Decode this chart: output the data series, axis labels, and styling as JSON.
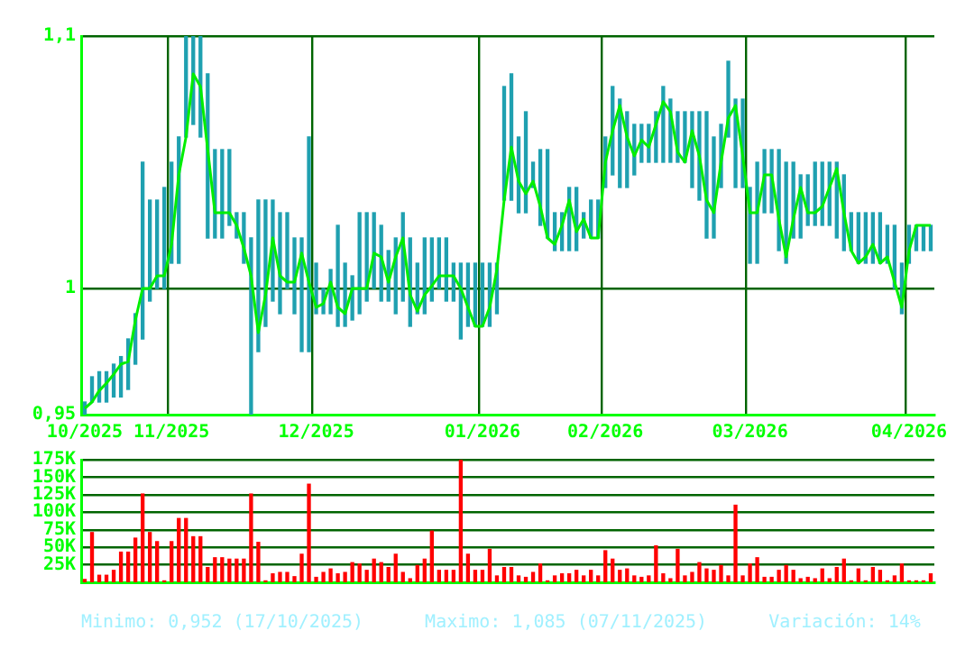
{
  "chart_data": [
    {
      "type": "line",
      "categories": [
        "10/2025",
        null,
        null,
        null,
        null,
        null,
        null,
        null,
        null,
        null,
        null,
        null,
        "11/2025",
        null,
        null,
        null,
        null,
        null,
        null,
        null,
        null,
        null,
        null,
        null,
        null,
        null,
        null,
        null,
        null,
        null,
        null,
        null,
        "12/2025",
        null,
        null,
        null,
        null,
        null,
        null,
        null,
        null,
        null,
        null,
        null,
        null,
        null,
        null,
        null,
        null,
        null,
        null,
        null,
        null,
        null,
        null,
        "01/2026",
        null,
        null,
        null,
        null,
        null,
        null,
        null,
        null,
        null,
        null,
        null,
        null,
        null,
        null,
        null,
        null,
        "02/2026",
        null,
        null,
        null,
        null,
        null,
        null,
        null,
        null,
        null,
        null,
        null,
        null,
        null,
        null,
        null,
        null,
        null,
        null,
        null,
        "03/2026",
        null,
        null,
        null,
        null,
        null,
        null,
        null,
        null,
        null,
        null,
        null,
        null,
        null,
        null,
        null,
        null,
        null,
        null,
        null,
        null,
        null,
        "04/2026",
        null,
        null,
        null
      ],
      "series": [
        {
          "type": "bar",
          "color": "#1fa0b0",
          "base": [
            0.95,
            0.955,
            0.955,
            0.955,
            0.957,
            0.957,
            0.96,
            0.97,
            0.98,
            0.995,
            1.0,
            1.0,
            1.01,
            1.01,
            1.06,
            1.065,
            1.06,
            1.02,
            1.02,
            1.02,
            1.025,
            1.02,
            1.01,
            0.95,
            0.975,
            0.985,
            0.995,
            0.99,
            1.0,
            0.99,
            0.975,
            0.975,
            0.99,
            0.99,
            0.99,
            0.985,
            0.985,
            0.9875,
            0.99,
            0.995,
            1.0,
            0.995,
            0.995,
            0.99,
            0.995,
            0.985,
            0.99,
            0.99,
            0.995,
            1.0,
            0.995,
            0.995,
            0.98,
            0.985,
            0.985,
            0.985,
            0.985,
            0.99,
            1.035,
            1.035,
            1.03,
            1.03,
            1.04,
            1.025,
            1.02,
            1.015,
            1.015,
            1.015,
            1.015,
            1.02,
            1.02,
            1.02,
            1.04,
            1.045,
            1.04,
            1.04,
            1.045,
            1.05,
            1.05,
            1.05,
            1.05,
            1.05,
            1.05,
            1.05,
            1.04,
            1.035,
            1.02,
            1.02,
            1.04,
            1.06,
            1.04,
            1.04,
            1.01,
            1.01,
            1.03,
            1.03,
            1.015,
            1.01,
            1.02,
            1.02,
            1.025,
            1.025,
            1.025,
            1.025,
            1.02,
            1.015,
            1.015,
            1.01,
            1.01,
            1.01,
            1.01,
            1.01,
            1.0,
            0.99,
            1.01,
            1.015,
            1.015,
            1.015
          ],
          "values": [
            0.005,
            0.01,
            0.012,
            0.012,
            0.013,
            0.016,
            0.02,
            0.02,
            0.07,
            0.04,
            0.035,
            0.04,
            0.04,
            0.05,
            0.04,
            0.035,
            0.04,
            0.065,
            0.035,
            0.035,
            0.03,
            0.01,
            0.02,
            0.07,
            0.06,
            0.05,
            0.04,
            0.04,
            0.03,
            0.03,
            0.045,
            0.085,
            0.02,
            0.01,
            0.0175,
            0.04,
            0.025,
            0.0175,
            0.04,
            0.035,
            0.03,
            0.03,
            0.02,
            0.03,
            0.035,
            0.035,
            0.02,
            0.03,
            0.025,
            0.02,
            0.025,
            0.015,
            0.03,
            0.025,
            0.025,
            0.025,
            0.025,
            0.02,
            0.045,
            0.05,
            0.03,
            0.04,
            0.01,
            0.03,
            0.035,
            0.015,
            0.015,
            0.025,
            0.025,
            0.01,
            0.015,
            0.015,
            0.02,
            0.035,
            0.035,
            0.03,
            0.02,
            0.015,
            0.015,
            0.02,
            0.03,
            0.025,
            0.02,
            0.02,
            0.03,
            0.035,
            0.05,
            0.04,
            0.025,
            0.03,
            0.035,
            0.035,
            0.03,
            0.04,
            0.025,
            0.025,
            0.04,
            0.04,
            0.03,
            0.025,
            0.02,
            0.025,
            0.025,
            0.025,
            0.03,
            0.03,
            0.015,
            0.02,
            0.02,
            0.02,
            0.02,
            0.015,
            0.025,
            0.02,
            0.015,
            0.01,
            0.01,
            0.01
          ]
        },
        {
          "type": "line",
          "color": "#00ee00",
          "values": [
            0.9525,
            0.955,
            0.9595,
            0.9625,
            0.966,
            0.97,
            0.971,
            0.9875,
            1.0,
            1.0,
            1.005,
            1.005,
            1.0175,
            1.045,
            1.06,
            1.085,
            1.08,
            1.055,
            1.03,
            1.03,
            1.03,
            1.025,
            1.016,
            1.005,
            0.9825,
            0.9975,
            1.02,
            1.005,
            1.0025,
            1.0025,
            1.014,
            1.0025,
            0.9925,
            0.994,
            1.0025,
            0.9925,
            0.99,
            1.0,
            1.0,
            1.0,
            1.014,
            1.0125,
            1.0025,
            1.0125,
            1.02,
            0.9975,
            0.991,
            0.9975,
            1.001,
            1.005,
            1.005,
            1.005,
            1.0,
            0.9925,
            0.985,
            0.985,
            0.9925,
            1.0075,
            1.035,
            1.056,
            1.0425,
            1.0375,
            1.0425,
            1.0325,
            1.02,
            1.0175,
            1.025,
            1.035,
            1.0225,
            1.0275,
            1.02,
            1.02,
            1.05,
            1.0625,
            1.0725,
            1.06,
            1.0525,
            1.0588,
            1.056,
            1.065,
            1.074,
            1.07,
            1.054,
            1.05,
            1.0625,
            1.0525,
            1.035,
            1.03,
            1.05,
            1.0675,
            1.0725,
            1.0525,
            1.03,
            1.03,
            1.045,
            1.045,
            1.0275,
            1.0125,
            1.0275,
            1.04,
            1.03,
            1.03,
            1.0325,
            1.04,
            1.0475,
            1.03,
            1.015,
            1.01,
            1.0125,
            1.0175,
            1.01,
            1.0125,
            1.0025,
            0.9925,
            1.015,
            1.025,
            1.025,
            1.025
          ]
        }
      ],
      "ylim": [
        0.95,
        1.1
      ],
      "yticks": [
        {
          "value": 0.95,
          "label": "0,95"
        },
        1,
        {
          "value": 1.1,
          "label": "1,1"
        }
      ],
      "grid": true,
      "legend": false
    },
    {
      "type": "bar",
      "categories": [
        null,
        null,
        null,
        null,
        null,
        null,
        null,
        null,
        null,
        null,
        null,
        null,
        null,
        null,
        null,
        null,
        null,
        null,
        null,
        null,
        null,
        null,
        null,
        null,
        null,
        null,
        null,
        null,
        null,
        null,
        null,
        null,
        null,
        null,
        null,
        null,
        null,
        null,
        null,
        null,
        null,
        null,
        null,
        null,
        null,
        null,
        null,
        null,
        null,
        null,
        null,
        null,
        null,
        null,
        null,
        null,
        null,
        null,
        null,
        null,
        null,
        null,
        null,
        null,
        null,
        null,
        null,
        null,
        null,
        null,
        null,
        null,
        null,
        null,
        null,
        null,
        null,
        null,
        null,
        null,
        null,
        null,
        null,
        null,
        null,
        null,
        null,
        null,
        null,
        null,
        null,
        null,
        null,
        null,
        null,
        null,
        null,
        null,
        null,
        null,
        null,
        null,
        null,
        null,
        null,
        null,
        null,
        null,
        null,
        null,
        null,
        null,
        null,
        null,
        null,
        null,
        null,
        null
      ],
      "series": [
        {
          "color": "#ff0000",
          "values": [
            4000,
            71000,
            10000,
            10000,
            17000,
            43000,
            43000,
            63000,
            126000,
            71000,
            58000,
            2000,
            58000,
            91000,
            91000,
            65000,
            65000,
            21000,
            35000,
            35000,
            33000,
            33000,
            33000,
            126000,
            57000,
            2000,
            12000,
            14000,
            14000,
            8000,
            40000,
            140000,
            7000,
            14000,
            19000,
            12000,
            14000,
            28000,
            26000,
            17000,
            33000,
            28000,
            21000,
            40000,
            14000,
            5000,
            24000,
            33000,
            73000,
            17000,
            17000,
            17000,
            175000,
            40000,
            17000,
            17000,
            47000,
            9000,
            21000,
            21000,
            9000,
            7000,
            14000,
            26000,
            2000,
            9000,
            12000,
            12000,
            17000,
            9000,
            17000,
            9000,
            45000,
            33000,
            17000,
            19000,
            9000,
            7000,
            9000,
            52000,
            12000,
            5000,
            47000,
            9000,
            14000,
            28000,
            19000,
            17000,
            24000,
            9000,
            110000,
            9000,
            26000,
            35000,
            7000,
            7000,
            17000,
            24000,
            17000,
            5000,
            7000,
            5000,
            19000,
            5000,
            21000,
            33000,
            2000,
            19000,
            2000,
            21000,
            17000,
            2000,
            9000,
            26000,
            2000,
            2000,
            2000,
            12000
          ]
        }
      ],
      "ylim": [
        0,
        175000
      ],
      "yticks": [
        {
          "value": 25000,
          "label": "25K"
        },
        {
          "value": 50000,
          "label": "50K"
        },
        {
          "value": 75000,
          "label": "75K"
        },
        {
          "value": 100000,
          "label": "100K"
        },
        {
          "value": 125000,
          "label": "125K"
        },
        {
          "value": 150000,
          "label": "150K"
        },
        {
          "value": 175000,
          "label": "175K"
        }
      ],
      "grid": "y",
      "legend": false,
      "tick_labels": "y",
      "annotations": [
        "Minimo: 0,952 (17/10/2025)",
        "Maximo: 1,085 (07/11/2025)",
        "Variación: 14%"
      ]
    }
  ]
}
